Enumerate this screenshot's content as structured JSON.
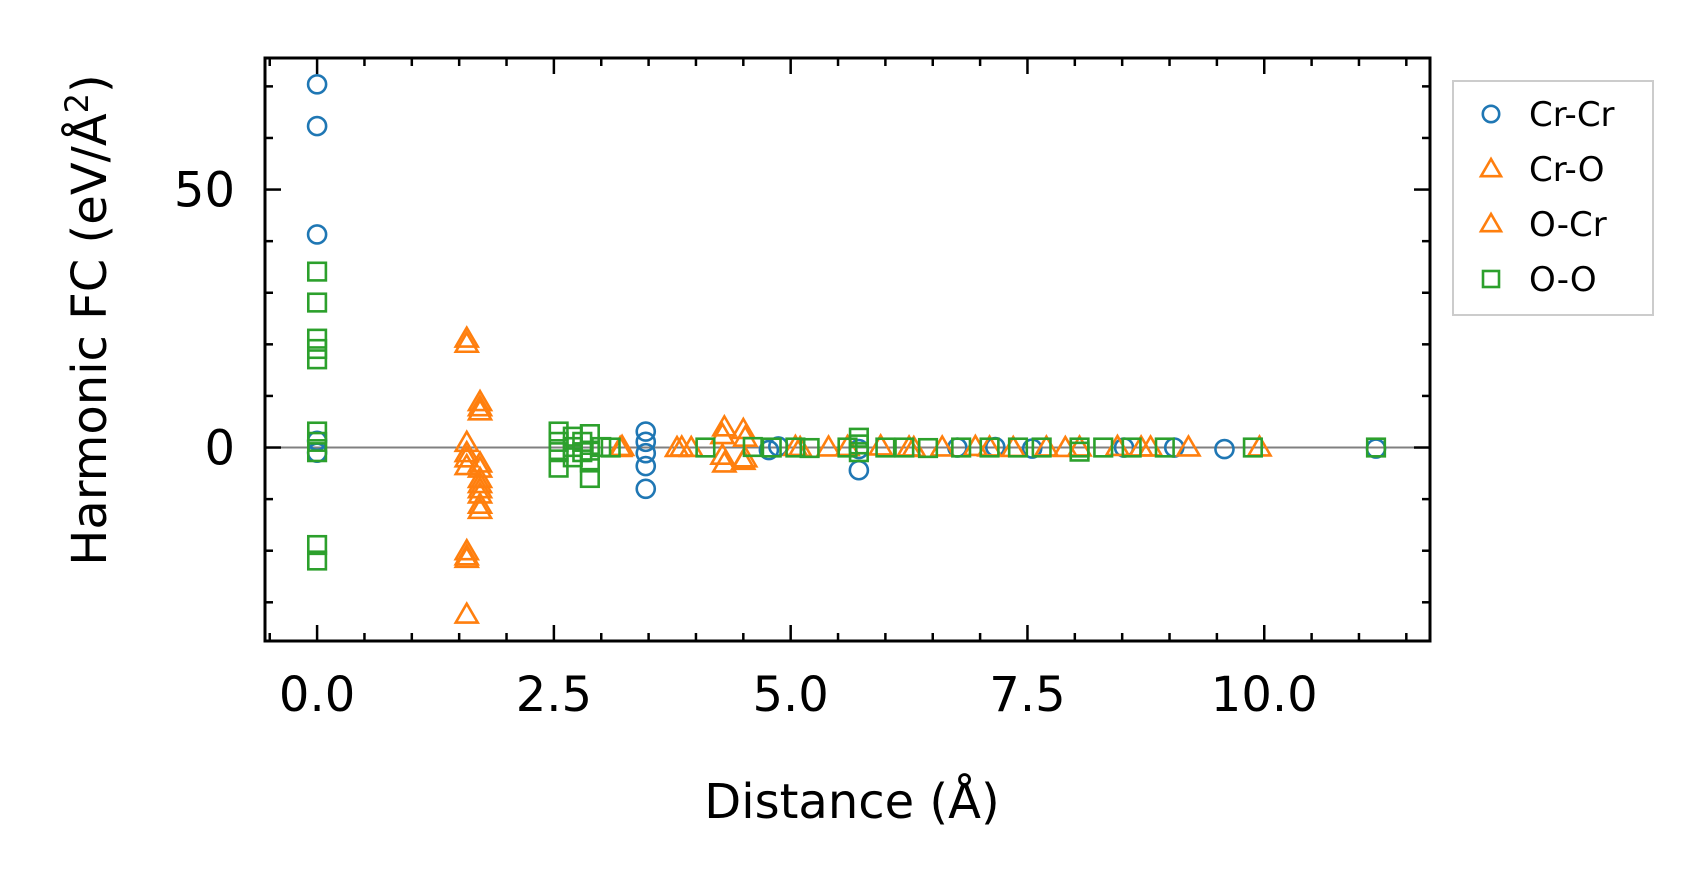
{
  "chart_data": {
    "type": "scatter",
    "title": "",
    "xlabel": "Distance (Å)",
    "ylabel_main": "Harmonic FC (eV/Å",
    "ylabel_sup": "2",
    "ylabel_end": ")",
    "xlim": [
      -0.55,
      11.75
    ],
    "ylim": [
      -37.5,
      75.5
    ],
    "xticks": [
      0.0,
      2.5,
      5.0,
      7.5,
      10.0
    ],
    "xtick_labels": [
      "0.0",
      "2.5",
      "5.0",
      "7.5",
      "10.0"
    ],
    "yticks": [
      0,
      50
    ],
    "ytick_labels": [
      "0",
      "50"
    ],
    "zero_line": true,
    "legend_position": "outside-right-top",
    "series": [
      {
        "name": "Cr-Cr",
        "marker": "circle",
        "color": "#1f77b4",
        "points": [
          [
            0.0,
            70.4
          ],
          [
            0.0,
            62.3
          ],
          [
            0.0,
            41.3
          ],
          [
            0.0,
            1.3
          ],
          [
            0.0,
            -1.0
          ],
          [
            3.47,
            3.1
          ],
          [
            3.47,
            1.1
          ],
          [
            3.47,
            -1.1
          ],
          [
            3.47,
            -3.6
          ],
          [
            3.47,
            -8.0
          ],
          [
            4.77,
            -0.5
          ],
          [
            4.87,
            0.2
          ],
          [
            5.72,
            -0.3
          ],
          [
            5.72,
            -4.4
          ],
          [
            6.76,
            0.0
          ],
          [
            7.16,
            0.1
          ],
          [
            7.55,
            -0.2
          ],
          [
            8.52,
            0.0
          ],
          [
            9.05,
            0.0
          ],
          [
            9.58,
            -0.3
          ],
          [
            11.18,
            -0.2
          ]
        ]
      },
      {
        "name": "Cr-O",
        "marker": "triangle",
        "color": "#ff7f0e",
        "points": [
          [
            1.58,
            21.1
          ],
          [
            1.58,
            0.9
          ],
          [
            1.58,
            -2.1
          ],
          [
            1.58,
            -20.1
          ],
          [
            1.58,
            -21.6
          ],
          [
            1.58,
            -32.4
          ],
          [
            1.72,
            8.8
          ],
          [
            1.72,
            -3.1
          ],
          [
            1.72,
            -6.1
          ],
          [
            1.72,
            -8.1
          ],
          [
            1.72,
            -11.1
          ],
          [
            3.2,
            -0.1
          ],
          [
            3.8,
            -0.1
          ],
          [
            3.95,
            -0.1
          ],
          [
            4.28,
            2.4
          ],
          [
            4.28,
            -1.6
          ],
          [
            4.52,
            1.9
          ],
          [
            4.52,
            -2.1
          ],
          [
            5.05,
            0.1
          ],
          [
            5.4,
            0.0
          ],
          [
            5.95,
            0.2
          ],
          [
            6.25,
            0.0
          ],
          [
            6.6,
            0.0
          ],
          [
            6.95,
            0.1
          ],
          [
            7.35,
            -0.1
          ],
          [
            7.7,
            0.0
          ],
          [
            8.05,
            0.0
          ],
          [
            8.45,
            0.1
          ],
          [
            8.8,
            0.0
          ],
          [
            9.2,
            0.0
          ],
          [
            9.95,
            0.0
          ]
        ]
      },
      {
        "name": "O-Cr",
        "marker": "triangle",
        "color": "#ff7f0e",
        "points": [
          [
            1.58,
            20.1
          ],
          [
            1.58,
            -1.1
          ],
          [
            1.58,
            -3.6
          ],
          [
            1.58,
            -21.1
          ],
          [
            1.72,
            7.8
          ],
          [
            1.72,
            7.0
          ],
          [
            1.72,
            -4.1
          ],
          [
            1.72,
            -7.1
          ],
          [
            1.72,
            -9.1
          ],
          [
            1.72,
            -12.1
          ],
          [
            3.22,
            0.1
          ],
          [
            3.85,
            0.0
          ],
          [
            4.3,
            3.9
          ],
          [
            4.3,
            -3.1
          ],
          [
            4.5,
            3.4
          ],
          [
            4.5,
            -2.6
          ],
          [
            5.1,
            -0.1
          ],
          [
            5.6,
            0.1
          ],
          [
            6.3,
            -0.1
          ],
          [
            7.1,
            0.0
          ],
          [
            7.9,
            -0.1
          ],
          [
            8.7,
            0.0
          ]
        ]
      },
      {
        "name": "O-O",
        "marker": "square",
        "color": "#2ca02c",
        "points": [
          [
            0.0,
            34.1
          ],
          [
            0.0,
            28.1
          ],
          [
            0.0,
            21.1
          ],
          [
            0.0,
            19.1
          ],
          [
            0.0,
            17.1
          ],
          [
            0.0,
            3.1
          ],
          [
            0.0,
            1.1
          ],
          [
            0.0,
            -0.9
          ],
          [
            0.0,
            -18.9
          ],
          [
            0.0,
            -21.9
          ],
          [
            2.55,
            3.1
          ],
          [
            2.55,
            1.1
          ],
          [
            2.55,
            -0.9
          ],
          [
            2.55,
            -3.9
          ],
          [
            2.7,
            2.1
          ],
          [
            2.7,
            0.1
          ],
          [
            2.7,
            -1.9
          ],
          [
            2.8,
            1.1
          ],
          [
            2.8,
            -0.9
          ],
          [
            2.88,
            2.6
          ],
          [
            2.88,
            -0.6
          ],
          [
            2.88,
            -2.9
          ],
          [
            2.88,
            -5.9
          ],
          [
            3.0,
            0.1
          ],
          [
            3.1,
            0.0
          ],
          [
            4.1,
            0.0
          ],
          [
            4.6,
            0.1
          ],
          [
            4.8,
            0.0
          ],
          [
            5.05,
            0.0
          ],
          [
            5.2,
            -0.1
          ],
          [
            5.6,
            0.0
          ],
          [
            5.72,
            1.9
          ],
          [
            5.72,
            0.6
          ],
          [
            5.72,
            -0.9
          ],
          [
            6.0,
            0.0
          ],
          [
            6.2,
            0.0
          ],
          [
            6.45,
            -0.1
          ],
          [
            6.8,
            0.0
          ],
          [
            7.1,
            0.0
          ],
          [
            7.4,
            0.0
          ],
          [
            7.65,
            0.0
          ],
          [
            8.05,
            0.0
          ],
          [
            8.05,
            -0.8
          ],
          [
            8.3,
            0.0
          ],
          [
            8.6,
            0.0
          ],
          [
            8.95,
            0.0
          ],
          [
            9.88,
            0.0
          ],
          [
            11.18,
            0.0
          ]
        ]
      }
    ]
  }
}
